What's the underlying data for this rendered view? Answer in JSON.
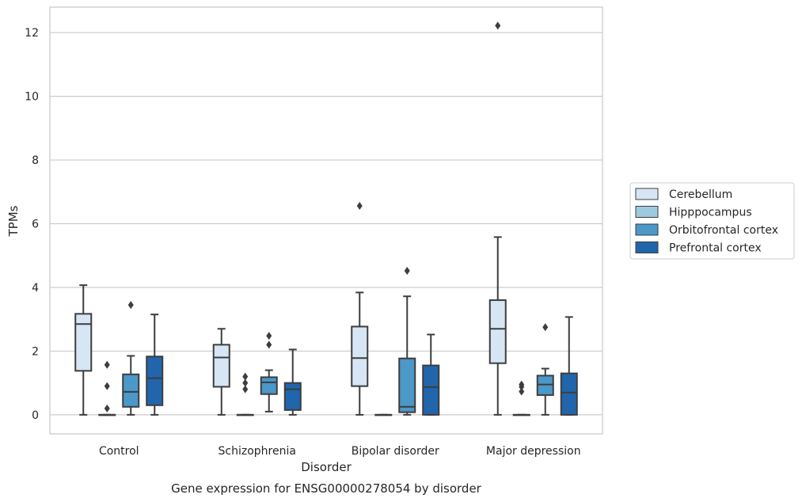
{
  "chart_data": {
    "type": "box",
    "caption": "Gene expression for ENSG00000278054 by disorder",
    "xlabel": "Disorder",
    "ylabel": "TPMs",
    "ylim": [
      -0.6,
      12.8
    ],
    "yticks": [
      0,
      2,
      4,
      6,
      8,
      10,
      12
    ],
    "grid": "horizontal",
    "legend_position": "right",
    "categories": [
      "Control",
      "Schizophrenia",
      "Bipolar disorder",
      "Major depression"
    ],
    "series": [
      {
        "name": "Cerebellum",
        "color": "#d6e6f4",
        "boxes": [
          {
            "whislo": 0.0,
            "q1": 1.38,
            "med": 2.85,
            "q3": 3.17,
            "whishi": 4.07,
            "fliers": []
          },
          {
            "whislo": 0.0,
            "q1": 0.88,
            "med": 1.8,
            "q3": 2.2,
            "whishi": 2.7,
            "fliers": []
          },
          {
            "whislo": 0.0,
            "q1": 0.9,
            "med": 1.78,
            "q3": 2.77,
            "whishi": 3.84,
            "fliers": [
              6.56
            ]
          },
          {
            "whislo": 0.0,
            "q1": 1.62,
            "med": 2.7,
            "q3": 3.6,
            "whishi": 5.58,
            "fliers": [
              12.22
            ]
          }
        ]
      },
      {
        "name": "Hipppocampus",
        "color": "#9ecae1",
        "boxes": [
          {
            "whislo": 0.0,
            "q1": 0.0,
            "med": 0.0,
            "q3": 0.0,
            "whishi": 0.0,
            "fliers": [
              0.2,
              0.9,
              1.57
            ]
          },
          {
            "whislo": 0.0,
            "q1": 0.0,
            "med": 0.0,
            "q3": 0.0,
            "whishi": 0.0,
            "fliers": [
              0.8,
              1.0,
              1.2
            ]
          },
          {
            "whislo": 0.0,
            "q1": 0.0,
            "med": 0.0,
            "q3": 0.0,
            "whishi": 0.0,
            "fliers": []
          },
          {
            "whislo": 0.0,
            "q1": 0.0,
            "med": 0.0,
            "q3": 0.0,
            "whishi": 0.0,
            "fliers": [
              0.73,
              0.88,
              0.95
            ]
          }
        ]
      },
      {
        "name": "Orbitofrontal cortex",
        "color": "#4b98c9",
        "boxes": [
          {
            "whislo": 0.0,
            "q1": 0.25,
            "med": 0.72,
            "q3": 1.27,
            "whishi": 1.85,
            "fliers": [
              3.45
            ]
          },
          {
            "whislo": 0.1,
            "q1": 0.65,
            "med": 1.02,
            "q3": 1.18,
            "whishi": 1.4,
            "fliers": [
              2.2,
              2.48
            ]
          },
          {
            "whislo": 0.0,
            "q1": 0.08,
            "med": 0.25,
            "q3": 1.77,
            "whishi": 3.72,
            "fliers": [
              4.52
            ]
          },
          {
            "whislo": 0.0,
            "q1": 0.62,
            "med": 0.95,
            "q3": 1.23,
            "whishi": 1.45,
            "fliers": [
              2.75
            ]
          }
        ]
      },
      {
        "name": "Prefrontal cortex",
        "color": "#2166ac",
        "boxes": [
          {
            "whislo": 0.0,
            "q1": 0.3,
            "med": 1.15,
            "q3": 1.83,
            "whishi": 3.15,
            "fliers": []
          },
          {
            "whislo": 0.0,
            "q1": 0.15,
            "med": 0.8,
            "q3": 1.0,
            "whishi": 2.05,
            "fliers": []
          },
          {
            "whislo": 0.0,
            "q1": 0.0,
            "med": 0.87,
            "q3": 1.55,
            "whishi": 2.52,
            "fliers": []
          },
          {
            "whislo": 0.0,
            "q1": 0.0,
            "med": 0.7,
            "q3": 1.3,
            "whishi": 3.07,
            "fliers": []
          }
        ]
      }
    ]
  }
}
